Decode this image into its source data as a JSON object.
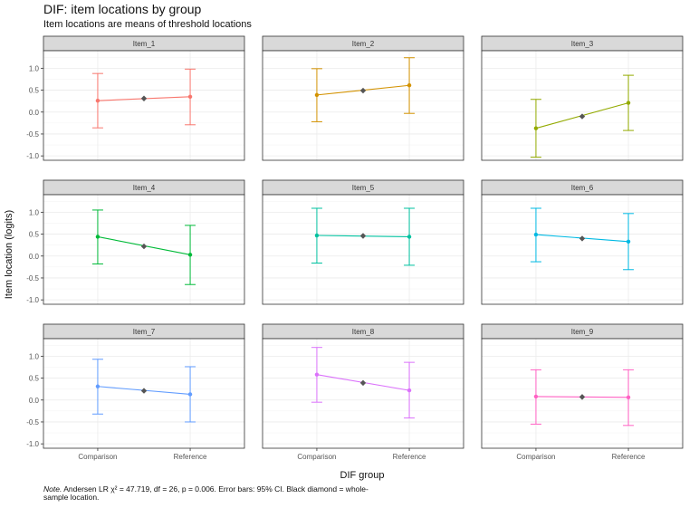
{
  "title": "DIF: item locations by group",
  "subtitle": "Item locations are means of threshold locations",
  "note_label": "Note.",
  "note_text": " Andersen LR χ² = 47.719, df = 26, p = 0.006. Error bars: 95% CI. Black diamond = whole-sample location.",
  "chart_data": {
    "type": "scatter",
    "categories": [
      "Comparison",
      "Reference"
    ],
    "xlabel": "DIF group",
    "ylabel": "Item location (logits)",
    "ylim": [
      -1.1,
      1.4
    ],
    "yticks": [
      -1.0,
      -0.5,
      0.0,
      0.5,
      1.0
    ],
    "ytick_labels": [
      "-1.0",
      "-0.5",
      "0.0",
      "0.5",
      "1.0"
    ],
    "grid": true,
    "overall_marker_color": "#555555",
    "panels": [
      {
        "name": "Item_1",
        "color": "#F8766D",
        "values": [
          0.26,
          0.35
        ],
        "lower": [
          -0.36,
          -0.29
        ],
        "upper": [
          0.88,
          0.98
        ],
        "overall": 0.31
      },
      {
        "name": "Item_2",
        "color": "#D39200",
        "values": [
          0.39,
          0.61
        ],
        "lower": [
          -0.22,
          -0.03
        ],
        "upper": [
          0.99,
          1.24
        ],
        "overall": 0.49
      },
      {
        "name": "Item_3",
        "color": "#93AA00",
        "values": [
          -0.37,
          0.21
        ],
        "lower": [
          -1.03,
          -0.42
        ],
        "upper": [
          0.29,
          0.84
        ],
        "overall": -0.1
      },
      {
        "name": "Item_4",
        "color": "#00BA38",
        "values": [
          0.44,
          0.03
        ],
        "lower": [
          -0.18,
          -0.65
        ],
        "upper": [
          1.05,
          0.7
        ],
        "overall": 0.22
      },
      {
        "name": "Item_5",
        "color": "#00C19F",
        "values": [
          0.47,
          0.44
        ],
        "lower": [
          -0.16,
          -0.21
        ],
        "upper": [
          1.09,
          1.09
        ],
        "overall": 0.46
      },
      {
        "name": "Item_6",
        "color": "#00B9E3",
        "values": [
          0.49,
          0.33
        ],
        "lower": [
          -0.13,
          -0.31
        ],
        "upper": [
          1.09,
          0.97
        ],
        "overall": 0.4
      },
      {
        "name": "Item_7",
        "color": "#619CFF",
        "values": [
          0.31,
          0.13
        ],
        "lower": [
          -0.32,
          -0.5
        ],
        "upper": [
          0.93,
          0.76
        ],
        "overall": 0.21
      },
      {
        "name": "Item_8",
        "color": "#DB72FB",
        "values": [
          0.58,
          0.22
        ],
        "lower": [
          -0.05,
          -0.41
        ],
        "upper": [
          1.2,
          0.86
        ],
        "overall": 0.39
      },
      {
        "name": "Item_9",
        "color": "#FF61C3",
        "values": [
          0.08,
          0.06
        ],
        "lower": [
          -0.55,
          -0.58
        ],
        "upper": [
          0.69,
          0.69
        ],
        "overall": 0.07
      }
    ]
  }
}
